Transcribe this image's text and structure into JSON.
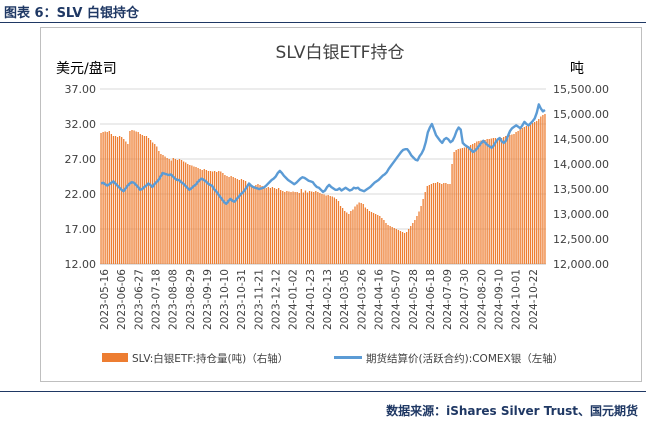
{
  "figure_caption": "图表 6：SLV 白银持仓",
  "source_note": "数据来源：iShares Silver Trust、国元期货",
  "colors": {
    "bar": "#ED7D31",
    "line": "#5B9BD5",
    "grid": "#d9d9d9",
    "caption": "#1f3864"
  },
  "chart_data": {
    "type": "bar+line",
    "title": "SLV白银ETF持仓",
    "left_axis_unit": "美元/盘司",
    "right_axis_unit": "吨",
    "left_axis": {
      "min": 12,
      "max": 37,
      "ticks": [
        "12.00",
        "17.00",
        "22.00",
        "27.00",
        "32.00",
        "37.00"
      ]
    },
    "right_axis": {
      "min": 12000,
      "max": 15500,
      "ticks": [
        "12,000.00",
        "12,500.00",
        "13,000.00",
        "13,500.00",
        "14,000.00",
        "14,500.00",
        "15,000.00",
        "15,500.00"
      ]
    },
    "grid": true,
    "legend_position": "bottom",
    "x_ticks": [
      "2023-05-16",
      "2023-06-06",
      "2023-06-27",
      "2023-07-18",
      "2023-08-08",
      "2023-08-29",
      "2023-09-19",
      "2023-10-10",
      "2023-10-31",
      "2023-11-21",
      "2023-12-12",
      "2024-01-02",
      "2024-01-23",
      "2024-02-13",
      "2024-03-05",
      "2024-03-26",
      "2024-04-16",
      "2024-05-07",
      "2024-05-28",
      "2024-06-18",
      "2024-07-09",
      "2024-07-30",
      "2024-08-20",
      "2024-09-10",
      "2024-10-01",
      "2024-10-22"
    ],
    "series": [
      {
        "name": "SLV:白银ETF:持仓量(吨)（右轴）",
        "type": "bar",
        "axis": "right",
        "values": [
          14620,
          14640,
          14650,
          14640,
          14660,
          14600,
          14560,
          14560,
          14540,
          14560,
          14540,
          14500,
          14450,
          14400,
          14660,
          14680,
          14670,
          14650,
          14640,
          14600,
          14580,
          14560,
          14560,
          14520,
          14480,
          14430,
          14400,
          14350,
          14260,
          14200,
          14180,
          14150,
          14120,
          14100,
          14070,
          14120,
          14100,
          14080,
          14100,
          14080,
          14050,
          14030,
          14000,
          13980,
          13970,
          13950,
          13940,
          13920,
          13900,
          13880,
          13900,
          13880,
          13860,
          13860,
          13850,
          13860,
          13840,
          13860,
          13850,
          13820,
          13780,
          13760,
          13740,
          13760,
          13740,
          13720,
          13700,
          13680,
          13700,
          13680,
          13660,
          13600,
          13600,
          13580,
          13560,
          13580,
          13600,
          13580,
          13560,
          13540,
          13520,
          13540,
          13520,
          13540,
          13520,
          13500,
          13520,
          13480,
          13460,
          13440,
          13460,
          13450,
          13440,
          13450,
          13440,
          13440,
          13420,
          13500,
          13430,
          13470,
          13430,
          13460,
          13450,
          13440,
          13460,
          13440,
          13420,
          13400,
          13390,
          13370,
          13380,
          13360,
          13350,
          13330,
          13300,
          13260,
          13160,
          13120,
          13060,
          13030,
          13000,
          13060,
          13090,
          13150,
          13190,
          13230,
          13220,
          13200,
          13130,
          13100,
          13060,
          13040,
          13020,
          13000,
          12980,
          12960,
          12920,
          12880,
          12820,
          12780,
          12760,
          12740,
          12720,
          12700,
          12680,
          12660,
          12640,
          12620,
          12640,
          12700,
          12760,
          12820,
          12880,
          12960,
          13050,
          13160,
          13300,
          13440,
          13560,
          13580,
          13600,
          13620,
          13620,
          13640,
          13620,
          13600,
          13620,
          13620,
          13600,
          13600,
          14000,
          14240,
          14280,
          14300,
          14310,
          14320,
          14330,
          14350,
          14360,
          14380,
          14400,
          14420,
          14450,
          14460,
          14470,
          14480,
          14480,
          14500,
          14500,
          14510,
          14520,
          14520,
          14500,
          14500,
          14520,
          14540,
          14560,
          14560,
          14580,
          14590,
          14600,
          14640,
          14660,
          14700,
          14720,
          14740,
          14760,
          14780,
          14800,
          14820,
          14840,
          14860,
          14900,
          14950,
          14980,
          15000
        ]
      },
      {
        "name": "期货结算价(活跃合约):COMEX银（左轴）",
        "type": "line",
        "axis": "left",
        "values": [
          23.5,
          23.6,
          23.4,
          23.2,
          23.4,
          23.6,
          23.8,
          23.5,
          23.2,
          22.9,
          22.6,
          22.4,
          22.8,
          23.2,
          23.5,
          23.7,
          23.6,
          23.3,
          23.0,
          22.6,
          22.7,
          23.0,
          23.2,
          23.5,
          23.3,
          23.0,
          23.4,
          23.7,
          24.0,
          24.5,
          25.0,
          24.9,
          24.8,
          24.7,
          24.8,
          24.5,
          24.2,
          24.0,
          24.0,
          23.7,
          23.5,
          23.2,
          22.9,
          22.6,
          22.8,
          23.1,
          23.3,
          23.7,
          24.0,
          24.2,
          24.0,
          23.8,
          23.5,
          23.3,
          23.2,
          22.7,
          22.4,
          22.0,
          21.6,
          21.2,
          20.8,
          20.6,
          21.0,
          21.3,
          21.0,
          20.9,
          21.3,
          21.6,
          22.0,
          22.2,
          22.6,
          23.0,
          23.5,
          23.2,
          23.0,
          22.9,
          22.8,
          22.7,
          22.8,
          22.9,
          23.1,
          23.4,
          23.7,
          24.0,
          24.2,
          24.5,
          25.0,
          25.3,
          25.0,
          24.6,
          24.3,
          24.0,
          23.8,
          23.6,
          23.4,
          23.6,
          23.9,
          24.2,
          24.4,
          24.3,
          24.1,
          23.9,
          23.8,
          23.7,
          23.3,
          23.0,
          22.9,
          22.6,
          22.3,
          22.5,
          23.0,
          23.3,
          23.0,
          22.8,
          22.6,
          22.6,
          22.8,
          22.5,
          22.7,
          22.9,
          22.7,
          22.5,
          22.6,
          22.9,
          22.8,
          22.9,
          22.6,
          22.5,
          22.4,
          22.6,
          22.8,
          23.0,
          23.3,
          23.6,
          23.8,
          24.0,
          24.3,
          24.6,
          24.8,
          25.1,
          25.6,
          26.0,
          26.4,
          26.8,
          27.2,
          27.6,
          28.0,
          28.3,
          28.4,
          28.4,
          28.0,
          27.5,
          27.2,
          26.9,
          26.8,
          27.4,
          27.8,
          28.4,
          29.4,
          30.8,
          31.5,
          32.0,
          31.2,
          30.4,
          30.0,
          29.6,
          29.3,
          29.8,
          30.0,
          29.8,
          29.4,
          29.6,
          30.2,
          31.0,
          31.5,
          31.2,
          29.3,
          29.0,
          28.8,
          28.6,
          28.3,
          28.0,
          28.2,
          28.5,
          28.9,
          29.3,
          29.6,
          29.3,
          29.0,
          28.8,
          28.6,
          28.9,
          29.4,
          29.8,
          30.0,
          29.5,
          29.3,
          29.6,
          30.3,
          31.0,
          31.4,
          31.6,
          31.8,
          31.6,
          31.4,
          31.8,
          32.3,
          32.0,
          31.8,
          32.1,
          32.4,
          32.8,
          33.6,
          34.8,
          34.2,
          33.8,
          34.0
        ]
      }
    ]
  }
}
